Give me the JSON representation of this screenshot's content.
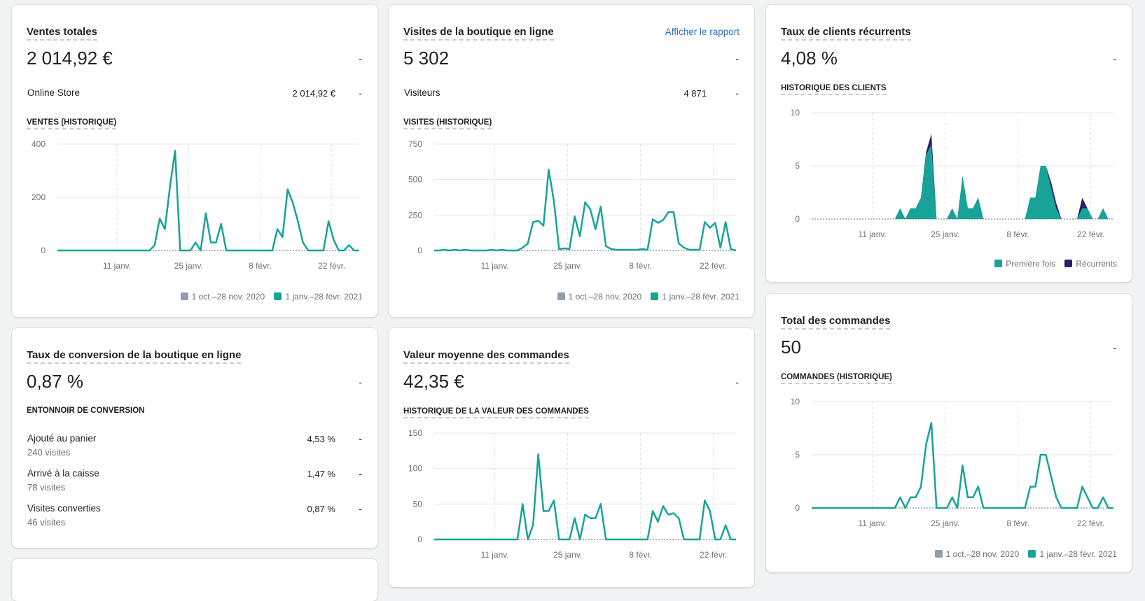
{
  "colors": {
    "teal": "#17a398",
    "grey": "#919eab",
    "navy": "#2b1d6b",
    "link": "#2c6ecb"
  },
  "legend": {
    "prev": "1 oct.–28 nov. 2020",
    "curr": "1 janv.–28 févr. 2021"
  },
  "dash": "-",
  "x_ticks": [
    "11 janv.",
    "25 janv.",
    "8 févr.",
    "22 févr."
  ],
  "ventes": {
    "title": "Ventes totales",
    "value": "2 014,92 €",
    "row_label": "Online Store",
    "row_value": "2 014,92 €",
    "section": "VENTES (HISTORIQUE)"
  },
  "visites": {
    "title": "Visites de la boutique en ligne",
    "link": "Afficher le rapport",
    "value": "5 302",
    "row_label": "Visiteurs",
    "row_value": "4 871",
    "section": "VISITES (HISTORIQUE)"
  },
  "recurrents": {
    "title": "Taux de clients récurrents",
    "value": "4,08 %",
    "section": "HISTORIQUE DES CLIENTS",
    "legend_first": "Première fois",
    "legend_returning": "Récurrents"
  },
  "conversion": {
    "title": "Taux de conversion de la boutique en ligne",
    "value": "0,87 %",
    "section": "ENTONNOIR DE CONVERSION",
    "rows": [
      {
        "label": "Ajouté au panier",
        "sub": "240 visites",
        "pct": "4,53 %"
      },
      {
        "label": "Arrivé à la caisse",
        "sub": "78 visites",
        "pct": "1,47 %"
      },
      {
        "label": "Visites converties",
        "sub": "46 visites",
        "pct": "0,87 %"
      }
    ]
  },
  "valeur": {
    "title": "Valeur moyenne des commandes",
    "value": "42,35 €",
    "section": "HISTORIQUE DE LA VALEUR DES COMMANDES"
  },
  "commandes": {
    "title": "Total des commandes",
    "value": "50",
    "section": "COMMANDES (HISTORIQUE)"
  },
  "chart_data": [
    {
      "id": "ventes",
      "type": "line",
      "x_ticks": [
        "11 janv.",
        "25 janv.",
        "8 févr.",
        "22 févr."
      ],
      "y_ticks": [
        "400",
        "200",
        "0"
      ],
      "ylim": [
        0,
        400
      ],
      "series": [
        {
          "name": "1 janv.–28 févr. 2021",
          "values": [
            0,
            0,
            0,
            0,
            0,
            0,
            0,
            0,
            0,
            0,
            0,
            0,
            0,
            0,
            0,
            0,
            0,
            0,
            0,
            20,
            120,
            80,
            240,
            375,
            0,
            0,
            0,
            30,
            0,
            140,
            30,
            30,
            100,
            0,
            0,
            0,
            0,
            0,
            0,
            0,
            0,
            0,
            0,
            80,
            50,
            230,
            180,
            110,
            30,
            0,
            0,
            0,
            0,
            110,
            40,
            0,
            0,
            20,
            0,
            0
          ]
        }
      ]
    },
    {
      "id": "visites",
      "type": "line",
      "x_ticks": [
        "11 janv.",
        "25 janv.",
        "8 févr.",
        "22 févr."
      ],
      "y_ticks": [
        "750",
        "500",
        "250",
        "0"
      ],
      "ylim": [
        0,
        750
      ],
      "series": [
        {
          "name": "1 janv.–28 févr. 2021",
          "values": [
            0,
            0,
            5,
            0,
            5,
            0,
            5,
            0,
            0,
            0,
            0,
            5,
            0,
            5,
            0,
            0,
            0,
            20,
            50,
            200,
            210,
            175,
            570,
            350,
            10,
            15,
            10,
            240,
            100,
            340,
            290,
            150,
            310,
            30,
            10,
            5,
            5,
            5,
            5,
            5,
            10,
            5,
            220,
            195,
            215,
            270,
            270,
            50,
            20,
            5,
            5,
            5,
            200,
            160,
            195,
            20,
            200,
            10,
            0
          ]
        }
      ]
    },
    {
      "id": "recurrents",
      "type": "area",
      "x_ticks": [
        "11 janv.",
        "25 janv.",
        "8 févr.",
        "22 févr."
      ],
      "y_ticks": [
        "10",
        "5",
        "0"
      ],
      "ylim": [
        0,
        10
      ],
      "series": [
        {
          "name": "Première fois",
          "values": [
            0,
            0,
            0,
            0,
            0,
            0,
            0,
            0,
            0,
            0,
            0,
            0,
            0,
            0,
            0,
            0,
            0,
            1,
            0,
            1,
            1,
            2,
            6,
            7,
            0,
            0,
            0,
            1,
            0,
            4,
            1,
            1,
            2,
            0,
            0,
            0,
            0,
            0,
            0,
            0,
            0,
            0,
            2,
            2,
            5,
            5,
            3,
            1,
            0,
            0,
            0,
            0,
            1,
            1,
            0,
            0,
            1,
            0,
            0
          ]
        },
        {
          "name": "Récurrents",
          "values": [
            0,
            0,
            0,
            0,
            0,
            0,
            0,
            0,
            0,
            0,
            0,
            0,
            0,
            0,
            0,
            0,
            0,
            0,
            0,
            0,
            0,
            0,
            0.3,
            1,
            0,
            0,
            0,
            0,
            0,
            0,
            0,
            0,
            0,
            0,
            0,
            0,
            0,
            0,
            0,
            0,
            0,
            0,
            0,
            0,
            0,
            0,
            0.5,
            0.5,
            0,
            0,
            0,
            0,
            1,
            0,
            0,
            0,
            0,
            0,
            0
          ]
        }
      ]
    },
    {
      "id": "valeur",
      "type": "line",
      "x_ticks": [
        "11 janv.",
        "25 janv.",
        "8 févr.",
        "22 févr."
      ],
      "y_ticks": [
        "150",
        "100",
        "50",
        "0"
      ],
      "ylim": [
        0,
        150
      ],
      "series": [
        {
          "name": "1 janv.–28 févr. 2021",
          "values": [
            0,
            0,
            0,
            0,
            0,
            0,
            0,
            0,
            0,
            0,
            0,
            0,
            0,
            0,
            0,
            0,
            0,
            50,
            0,
            20,
            120,
            40,
            40,
            55,
            0,
            0,
            0,
            30,
            0,
            35,
            30,
            30,
            50,
            0,
            0,
            0,
            0,
            0,
            0,
            0,
            0,
            0,
            40,
            25,
            47,
            35,
            37,
            30,
            0,
            0,
            0,
            0,
            55,
            40,
            0,
            0,
            20,
            0,
            0
          ]
        }
      ]
    },
    {
      "id": "commandes",
      "type": "line",
      "x_ticks": [
        "11 janv.",
        "25 janv.",
        "8 févr.",
        "22 févr."
      ],
      "y_ticks": [
        "10",
        "5",
        "0"
      ],
      "ylim": [
        0,
        10
      ],
      "series": [
        {
          "name": "1 janv.–28 févr. 2021",
          "values": [
            0,
            0,
            0,
            0,
            0,
            0,
            0,
            0,
            0,
            0,
            0,
            0,
            0,
            0,
            0,
            0,
            0,
            1,
            0,
            1,
            1,
            2,
            6,
            8,
            0,
            0,
            0,
            1,
            0,
            4,
            1,
            1,
            2,
            0,
            0,
            0,
            0,
            0,
            0,
            0,
            0,
            0,
            2,
            2,
            5,
            5,
            3,
            1,
            0,
            0,
            0,
            0,
            2,
            1,
            0,
            0,
            1,
            0,
            0
          ]
        }
      ]
    }
  ]
}
